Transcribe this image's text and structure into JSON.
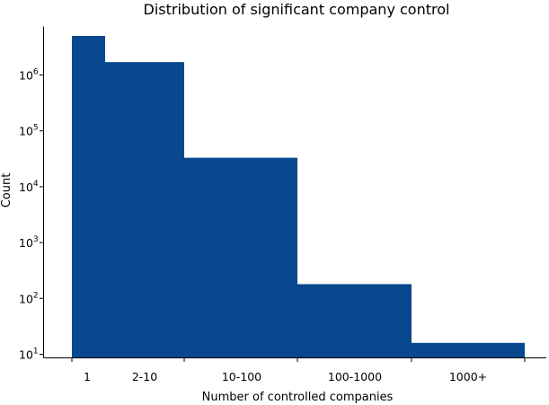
{
  "chart_data": {
    "type": "bar",
    "title": "Distribution of significant company control",
    "xlabel": "Number of controlled companies",
    "ylabel": "Count",
    "yscale": "log",
    "ylim": [
      8,
      8000000
    ],
    "y_ticks": [
      {
        "value": 10,
        "base": "10",
        "exp": "1"
      },
      {
        "value": 100,
        "base": "10",
        "exp": "2"
      },
      {
        "value": 1000,
        "base": "10",
        "exp": "3"
      },
      {
        "value": 10000,
        "base": "10",
        "exp": "4"
      },
      {
        "value": 100000,
        "base": "10",
        "exp": "5"
      },
      {
        "value": 1000000,
        "base": "10",
        "exp": "6"
      }
    ],
    "categories": [
      "1",
      "2-10",
      "10-100",
      "100-1000",
      "1000+"
    ],
    "bars": [
      {
        "label": "1",
        "value": 5000000
      },
      {
        "label": "2-10",
        "value": 1700000
      },
      {
        "label": "10-100",
        "value": 33000
      },
      {
        "label": "100-1000",
        "value": 180
      },
      {
        "label": "1000+",
        "value": 16
      }
    ],
    "bar_color": "#08488e",
    "grid": false,
    "legend": "none"
  }
}
